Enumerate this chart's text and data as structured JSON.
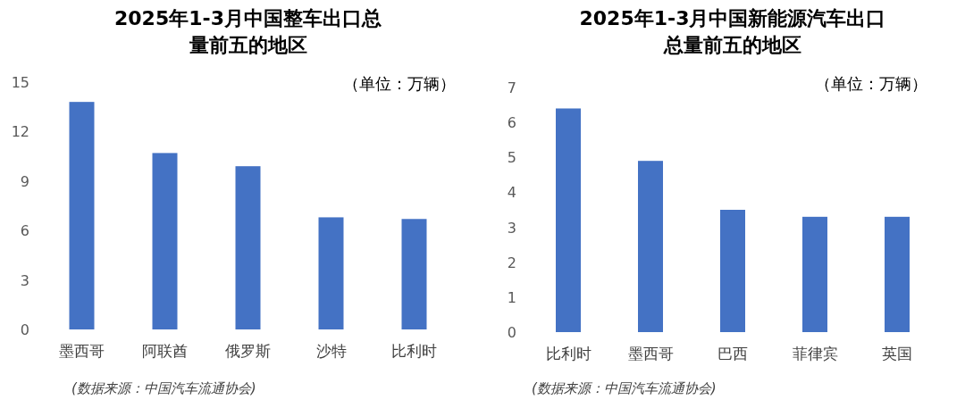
{
  "chart_data": [
    {
      "type": "bar",
      "title": "2025年1-3月中国整车出口总量前五的地区",
      "categories": [
        "墨西哥",
        "阿联酋",
        "俄罗斯",
        "沙特",
        "比利时"
      ],
      "values": [
        13.8,
        10.7,
        9.9,
        6.8,
        6.7
      ],
      "color": "#4472c4",
      "ylim": [
        0,
        15
      ],
      "yticks": [
        0,
        3,
        6,
        9,
        12,
        15
      ],
      "grid": false,
      "annotations": [
        "（单位：万辆）",
        "(数据来源：中国汽车流通协会)"
      ]
    },
    {
      "type": "bar",
      "title": "2025年1-3月中国新能源汽车出口总量前五的地区",
      "categories": [
        "比利时",
        "墨西哥",
        "巴西",
        "菲律宾",
        "英国"
      ],
      "values": [
        6.4,
        4.9,
        3.5,
        3.3,
        3.3
      ],
      "color": "#4472c4",
      "ylim": [
        0,
        7
      ],
      "yticks": [
        0,
        1,
        2,
        3,
        4,
        5,
        6,
        7
      ],
      "grid": false,
      "annotations": [
        "（单位：万辆）",
        "(数据来源：中国汽车流通协会)"
      ]
    }
  ]
}
